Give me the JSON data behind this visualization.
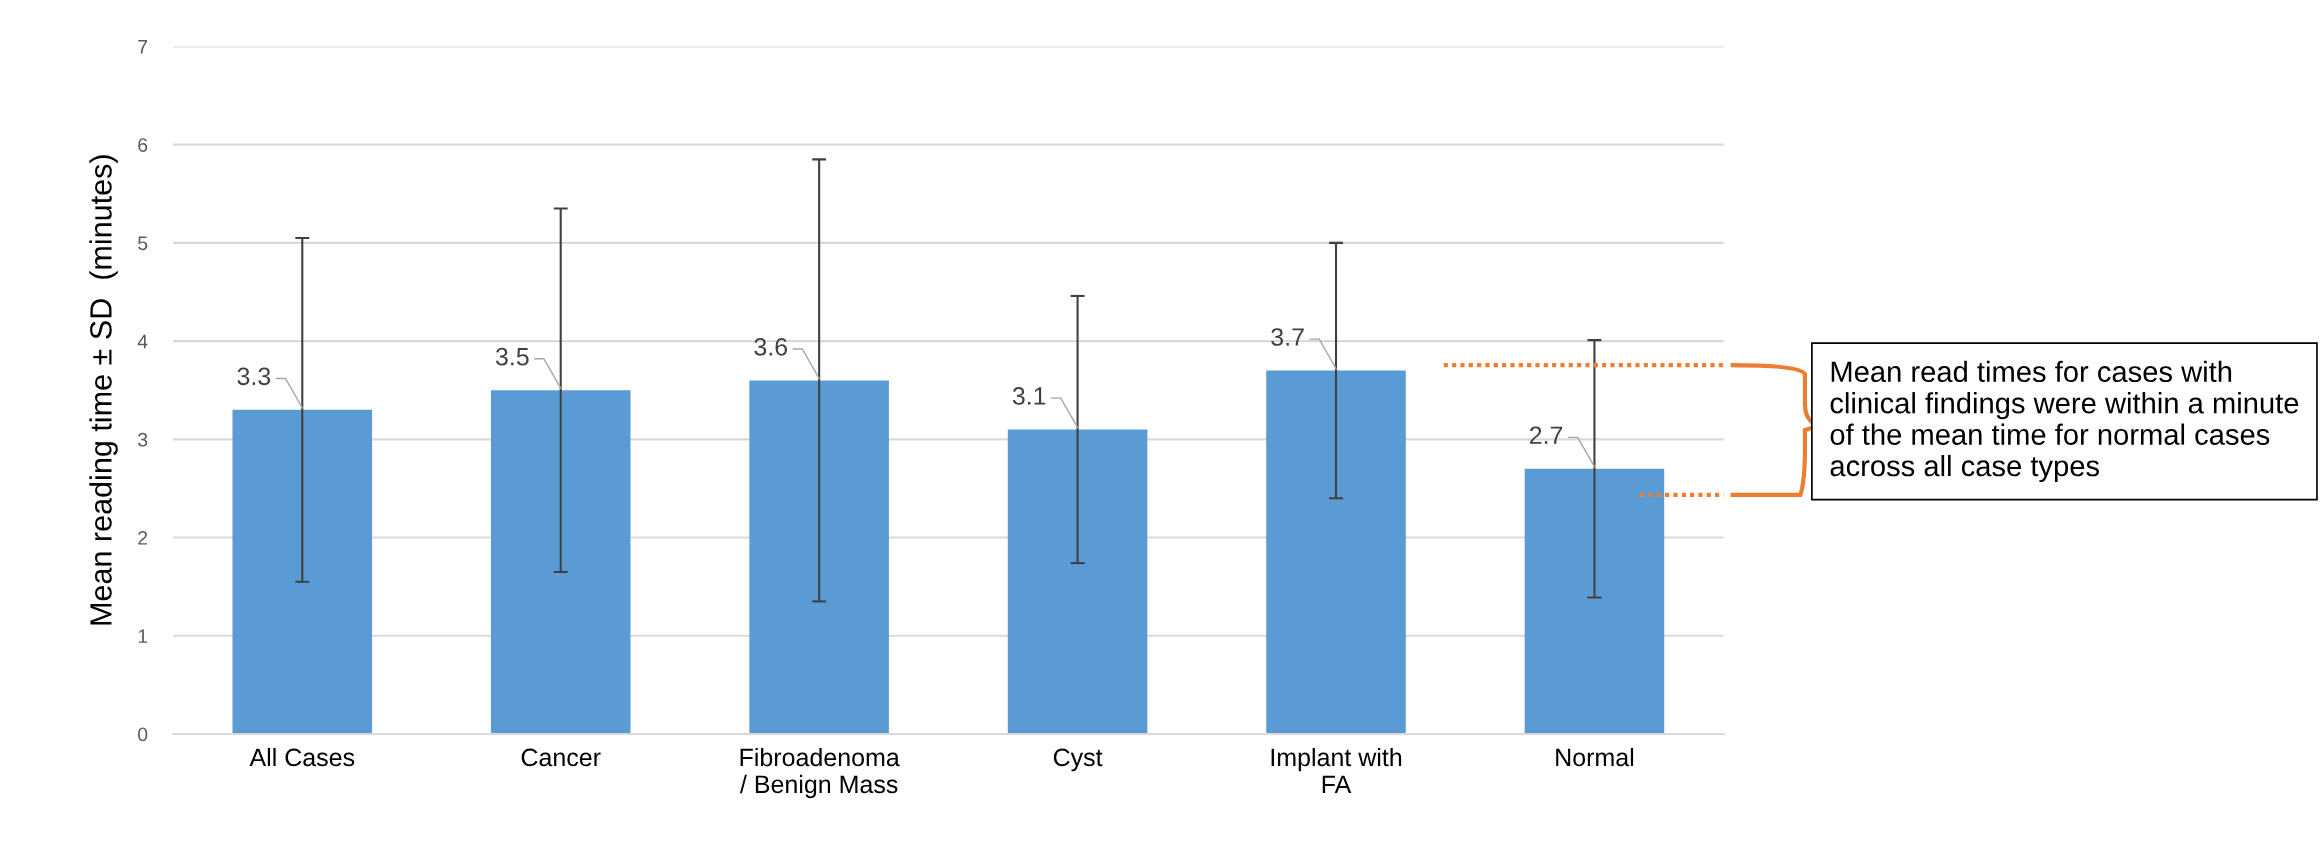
{
  "chart_data": {
    "type": "bar",
    "ylabel": "Mean reading time ± SD  (minutes)",
    "categories": [
      "All Cases",
      "Cancer",
      "Fibroadenoma\n/ Benign Mass",
      "Cyst",
      "Implant with\nFA",
      "Normal"
    ],
    "values": [
      3.3,
      3.5,
      3.6,
      3.1,
      3.7,
      2.7
    ],
    "errors": [
      1.75,
      1.85,
      2.25,
      1.36,
      1.3,
      1.31
    ],
    "color": "#5b9bd5",
    "ylim": [
      0,
      7
    ],
    "yticks": [
      0,
      1,
      2,
      3,
      4,
      5,
      6,
      7
    ],
    "grid": "y",
    "data_labels": true,
    "annotations": [
      "Mean read times for cases with clinical findings were within a minute of the mean time for normal cases across all case types"
    ]
  }
}
